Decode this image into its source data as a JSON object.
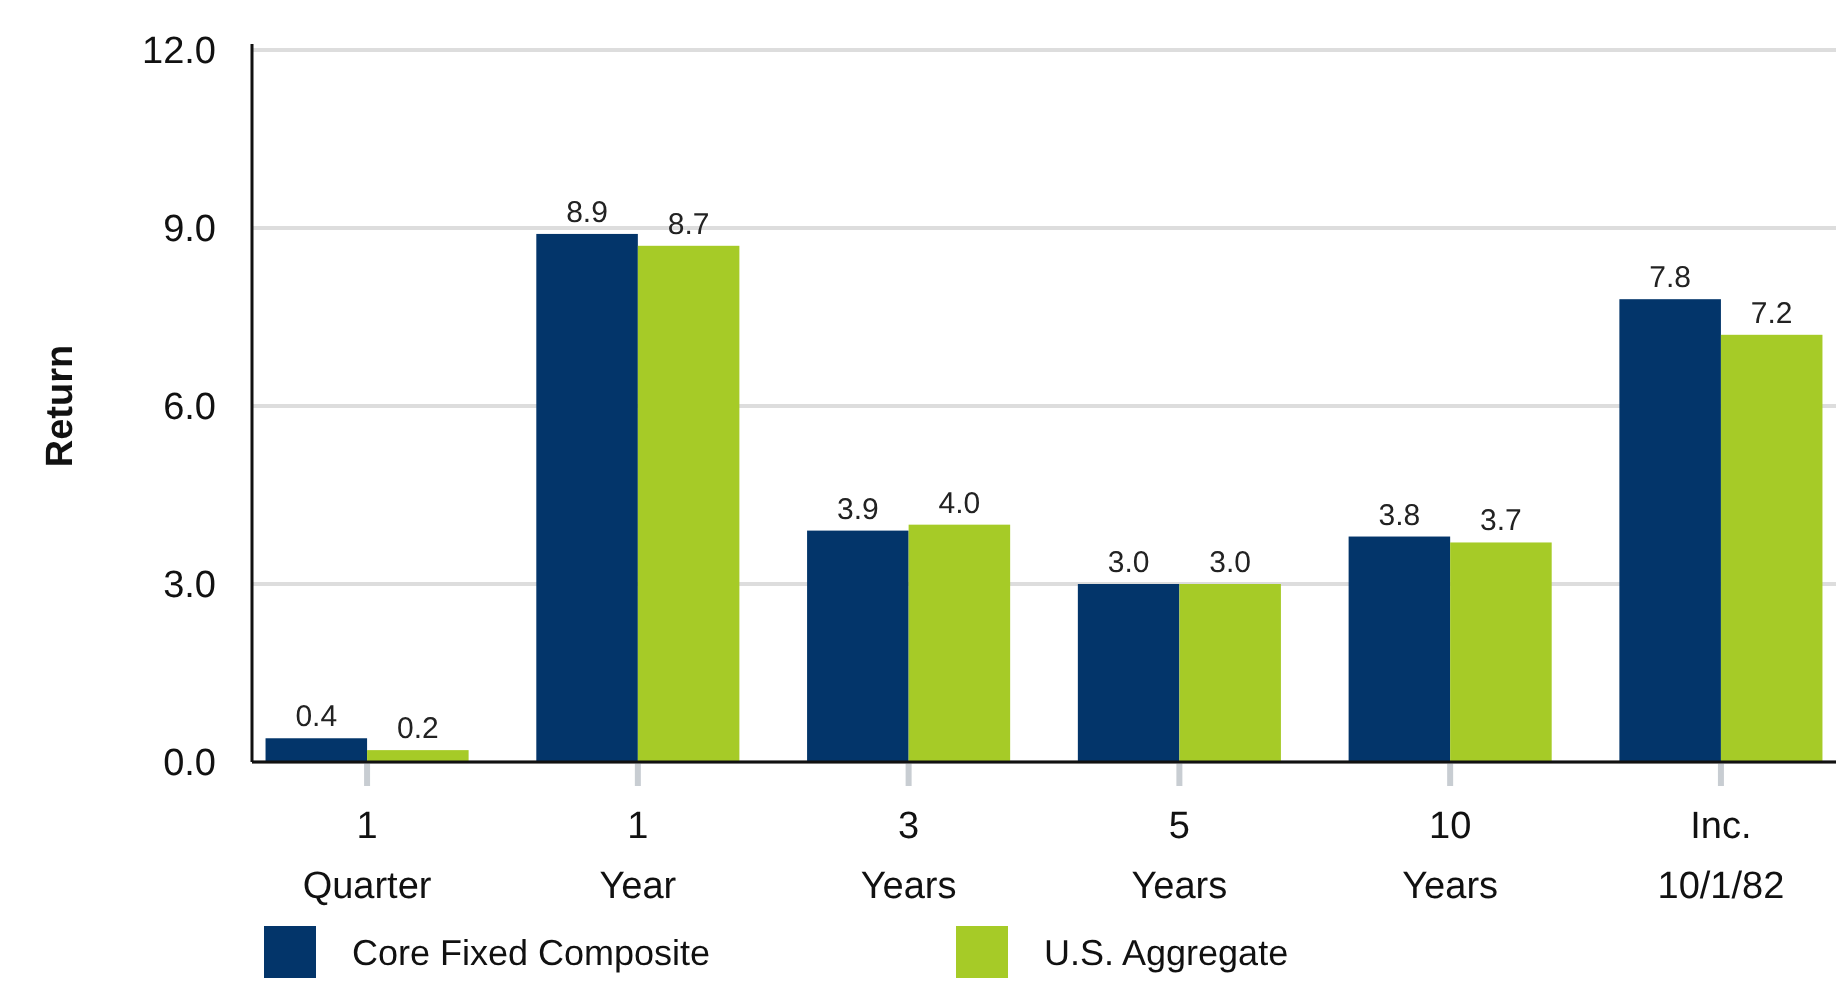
{
  "chart_data": {
    "type": "bar",
    "ylabel": "Return",
    "categories": [
      "1\nQuarter",
      "1\nYear",
      "3\nYears",
      "5\nYears",
      "10\nYears",
      "Inc.\n10/1/82"
    ],
    "series": [
      {
        "name": "Core Fixed Composite",
        "color": "#03356a",
        "values": [
          0.4,
          8.9,
          3.9,
          3.0,
          3.8,
          7.8
        ],
        "value_labels": [
          "0.4",
          "8.9",
          "3.9",
          "3.0",
          "3.8",
          "7.8"
        ]
      },
      {
        "name": "U.S. Aggregate",
        "color": "#a6cb27",
        "values": [
          0.2,
          8.7,
          4.0,
          3.0,
          3.7,
          7.2
        ],
        "value_labels": [
          "0.2",
          "8.7",
          "4.0",
          "3.0",
          "3.7",
          "7.2"
        ]
      }
    ],
    "ylim": [
      0,
      12
    ],
    "yticks": [
      {
        "value": 0,
        "label": "0.0"
      },
      {
        "value": 3,
        "label": "3.0"
      },
      {
        "value": 6,
        "label": "6.0"
      },
      {
        "value": 9,
        "label": "9.0"
      },
      {
        "value": 12,
        "label": "12.0"
      }
    ],
    "grid": "y",
    "legend": "bottom"
  }
}
